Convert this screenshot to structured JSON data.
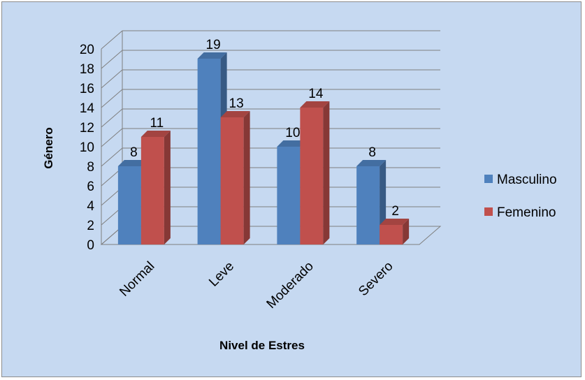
{
  "chart_data": {
    "type": "bar",
    "title": "",
    "xlabel": "Nivel de Estres",
    "ylabel": "Género",
    "categories": [
      "Normal",
      "Leve",
      "Moderado",
      "Severo"
    ],
    "ylim": [
      0,
      20
    ],
    "yticks": [
      "0",
      "2",
      "4",
      "6",
      "8",
      "10",
      "12",
      "14",
      "16",
      "18",
      "20"
    ],
    "grid": true,
    "legend_position": "right",
    "series": [
      {
        "name": "Masculino",
        "values": [
          8,
          19,
          10,
          8
        ],
        "color": "#4f81bd"
      },
      {
        "name": "Femenino",
        "values": [
          11,
          13,
          14,
          2
        ],
        "color": "#c0504d"
      }
    ]
  }
}
